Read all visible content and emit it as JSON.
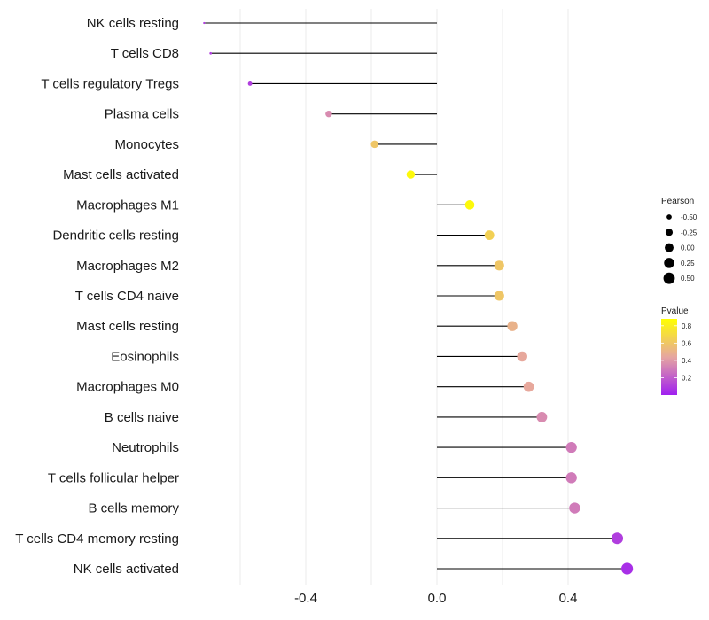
{
  "chart_data": {
    "type": "lollipop",
    "orientation": "horizontal",
    "title": "",
    "xlabel": "",
    "ylabel": "",
    "xlim": [
      -0.66,
      0.58
    ],
    "x_ticks": [
      -0.4,
      0.0,
      0.4
    ],
    "x_tick_labels": [
      "-0.4",
      "0.0",
      "0.4"
    ],
    "grid": true,
    "categories": [
      "NK cells resting",
      "T cells CD8",
      "T cells regulatory  Tregs",
      "Plasma cells",
      "Monocytes",
      "Mast cells activated",
      "Macrophages M1",
      "Dendritic cells resting",
      "Macrophages M2",
      "T cells CD4 naive",
      "Mast cells resting",
      "Eosinophils",
      "Macrophages M0",
      "B cells naive",
      "Neutrophils",
      "T cells follicular helper",
      "B cells memory",
      "T cells CD4 memory resting",
      "NK cells activated"
    ],
    "pearson": [
      -0.71,
      -0.69,
      -0.57,
      -0.33,
      -0.19,
      -0.08,
      0.1,
      0.16,
      0.19,
      0.19,
      0.23,
      0.26,
      0.28,
      0.32,
      0.41,
      0.41,
      0.42,
      0.55,
      0.58
    ],
    "pvalue": [
      0.1,
      0.1,
      0.1,
      0.35,
      0.6,
      0.85,
      0.85,
      0.65,
      0.6,
      0.6,
      0.5,
      0.45,
      0.45,
      0.35,
      0.3,
      0.3,
      0.3,
      0.1,
      0.05
    ],
    "legend_size": {
      "title": "Pearson",
      "labels": [
        "-0.50",
        "-0.25",
        "0.00",
        "0.25",
        "0.50"
      ],
      "values": [
        -0.5,
        -0.25,
        0.0,
        0.25,
        0.5
      ]
    },
    "legend_color": {
      "title": "Pvalue",
      "labels": [
        "0.8",
        "0.6",
        "0.4",
        "0.2"
      ],
      "values": [
        0.8,
        0.6,
        0.4,
        0.2
      ],
      "range": [
        0.0,
        0.88
      ],
      "low_color": "#a020f0",
      "mid_color": "#e6a6a0",
      "high_color": "#ffff00"
    },
    "stem_color": "#000000",
    "grid_color": "#ebebeb",
    "legend_position": "right"
  }
}
